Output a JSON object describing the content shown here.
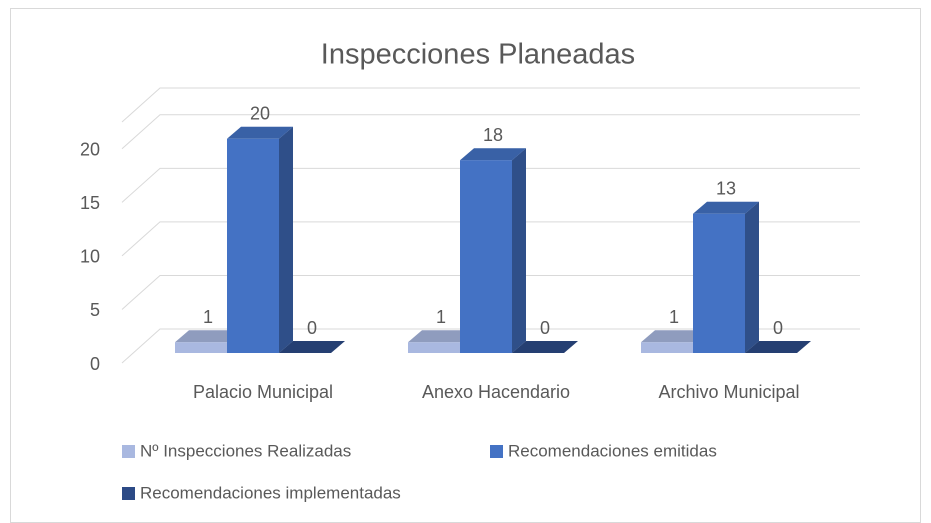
{
  "chart_data": {
    "type": "bar3d",
    "title": "Inspecciones Planeadas",
    "categories": [
      "Palacio Municipal",
      "Anexo Hacendario",
      "Archivo Municipal"
    ],
    "series": [
      {
        "name": "Nº Inspecciones Realizadas",
        "color": "#a9b8e0",
        "values": [
          1,
          1,
          1
        ]
      },
      {
        "name": "Recomendaciones emitidas",
        "color": "#4472c4",
        "values": [
          20,
          18,
          13
        ]
      },
      {
        "name": "Recomendaciones implementadas",
        "color": "#2c4a86",
        "values": [
          0,
          0,
          0
        ]
      }
    ],
    "ylim": [
      0,
      22.5
    ],
    "yticks": [
      0,
      5,
      10,
      15,
      20
    ],
    "grid": true,
    "legend": "bottom"
  }
}
